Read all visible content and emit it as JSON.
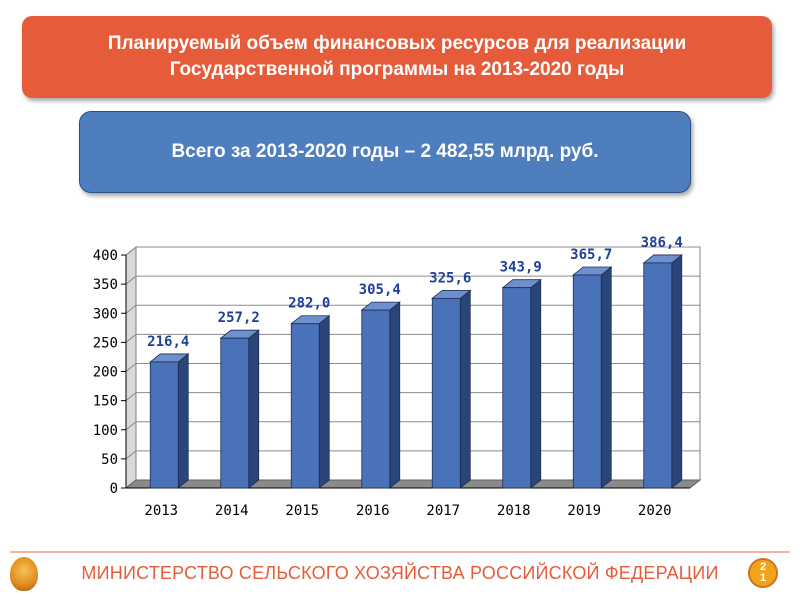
{
  "header": {
    "title_line1": "Планируемый объем финансовых ресурсов для реализации",
    "title_line2": "Государственной программы на 2013-2020 годы"
  },
  "summary": {
    "total_text": "Всего за 2013-2020 годы – 2 482,55 млрд. руб."
  },
  "chart_data": {
    "type": "bar",
    "title": "",
    "xlabel": "",
    "ylabel": "",
    "categories": [
      "2013",
      "2014",
      "2015",
      "2016",
      "2017",
      "2018",
      "2019",
      "2020"
    ],
    "values": [
      216.4,
      257.2,
      282.0,
      305.4,
      325.6,
      343.9,
      365.7,
      386.4
    ],
    "data_labels": [
      "216,4",
      "257,2",
      "282,0",
      "305,4",
      "325,6",
      "343,9",
      "365,7",
      "386,4"
    ],
    "ylim": [
      0,
      400
    ],
    "yticks": [
      0,
      50,
      100,
      150,
      200,
      250,
      300,
      350,
      400
    ],
    "grid": true,
    "style": "3d-column",
    "colors": {
      "bar_front": "#4a72b8",
      "bar_side": "#2a4577",
      "bar_top": "#6e90cc",
      "label": "#1f3f99",
      "wall": "#ffffff",
      "floor": "#8a8a8a"
    }
  },
  "footer": {
    "ministry": "МИНИСТЕРСТВО СЕЛЬСКОГО ХОЗЯЙСТВА РОССИЙСКОЙ ФЕДЕРАЦИИ",
    "page_top": "2",
    "page_bottom": "1"
  }
}
